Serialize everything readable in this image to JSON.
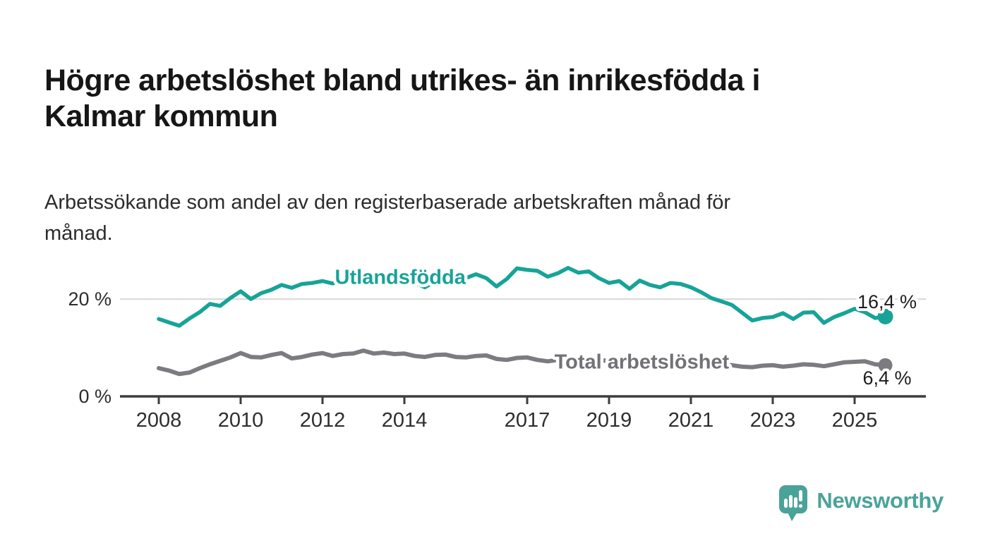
{
  "header": {
    "title_lines": [
      "Högre arbetslöshet bland utrikes- än inrikesfödda i",
      "Kalmar kommun"
    ],
    "subtitle_lines": [
      "Arbetssökande som andel av den registerbaserade arbetskraften månad för",
      "månad."
    ]
  },
  "footer": {
    "brand_name": "Newsworthy",
    "brand_color": "#4aa39a"
  },
  "colors": {
    "title": "#161616",
    "axis": "#3d3d3d",
    "gridline": "#d8d8d8",
    "tick_label": "#2e2e2e",
    "end_value_label": "#1d1d1d"
  },
  "chart_data": {
    "type": "line",
    "unit": "%",
    "grid": "single horizontal gridline at 20 %",
    "legend_position": "inline labels on lines",
    "x_axis": {
      "ticks": [
        2008,
        2010,
        2012,
        2014,
        2017,
        2019,
        2021,
        2023,
        2025
      ],
      "range": [
        2007,
        2026.8
      ]
    },
    "y_axis": {
      "ticks": [
        {
          "v": 20,
          "label": "20 %"
        },
        {
          "v": 0,
          "label": "0 %"
        }
      ],
      "range": [
        0,
        30
      ]
    },
    "x": [
      2008,
      2008.25,
      2008.5,
      2008.75,
      2009,
      2009.25,
      2009.5,
      2009.75,
      2010,
      2010.25,
      2010.5,
      2010.75,
      2011,
      2011.25,
      2011.5,
      2011.75,
      2012,
      2012.25,
      2012.5,
      2012.75,
      2013,
      2013.25,
      2013.5,
      2013.75,
      2014,
      2014.25,
      2014.5,
      2014.75,
      2015,
      2015.25,
      2015.5,
      2015.75,
      2016,
      2016.25,
      2016.5,
      2016.75,
      2017,
      2017.25,
      2017.5,
      2017.75,
      2018,
      2018.25,
      2018.5,
      2018.75,
      2019,
      2019.25,
      2019.5,
      2019.75,
      2020,
      2020.25,
      2020.5,
      2020.75,
      2021,
      2021.25,
      2021.5,
      2021.75,
      2022,
      2022.25,
      2022.5,
      2022.75,
      2023,
      2023.25,
      2023.5,
      2023.75,
      2024,
      2024.25,
      2024.5,
      2024.75,
      2025,
      2025.25,
      2025.5,
      2025.75
    ],
    "series": [
      {
        "id": "utlandsfodda",
        "name": "Utlandsfödda",
        "color": "#17a398",
        "label_color": "#17a398",
        "label_pos": {
          "x": 2013.9,
          "y": 24.6
        },
        "end_label": "16,4 %",
        "end_value": 16.4,
        "values": [
          15.9,
          15.2,
          14.5,
          16.0,
          17.3,
          19.0,
          18.6,
          20.2,
          21.6,
          20.0,
          21.2,
          21.9,
          22.9,
          22.3,
          23.1,
          23.3,
          23.7,
          23.2,
          23.9,
          23.6,
          24.1,
          23.7,
          24.2,
          23.9,
          24.1,
          23.4,
          22.4,
          23.6,
          23.9,
          23.6,
          24.3,
          25.1,
          24.3,
          22.6,
          24.1,
          26.3,
          26.0,
          25.8,
          24.6,
          25.3,
          26.4,
          25.4,
          25.7,
          24.3,
          23.3,
          23.7,
          22.1,
          23.8,
          22.9,
          22.4,
          23.3,
          23.1,
          22.4,
          21.4,
          20.2,
          19.5,
          18.8,
          17.2,
          15.6,
          16.1,
          16.3,
          17.1,
          15.9,
          17.2,
          17.3,
          15.1,
          16.3,
          17.1,
          18.0,
          17.3,
          16.1,
          16.4
        ]
      },
      {
        "id": "total-arbetsloshet",
        "name": "Total arbetslöshet",
        "color": "#7b7b80",
        "label_color": "#717176",
        "label_pos": {
          "x": 2019.8,
          "y": 7.2
        },
        "end_label": "6,4 %",
        "end_value": 6.4,
        "values": [
          5.8,
          5.3,
          4.6,
          4.9,
          5.8,
          6.6,
          7.3,
          8.0,
          8.9,
          8.1,
          8.0,
          8.5,
          8.9,
          7.8,
          8.1,
          8.6,
          8.9,
          8.3,
          8.7,
          8.8,
          9.4,
          8.8,
          9.0,
          8.7,
          8.8,
          8.3,
          8.1,
          8.5,
          8.6,
          8.1,
          8.0,
          8.3,
          8.4,
          7.7,
          7.5,
          7.9,
          8.0,
          7.5,
          7.2,
          7.5,
          7.7,
          7.2,
          7.0,
          7.3,
          7.4,
          7.0,
          6.8,
          7.0,
          7.2,
          7.8,
          8.0,
          7.8,
          7.6,
          7.2,
          6.9,
          6.6,
          6.4,
          6.1,
          6.0,
          6.3,
          6.4,
          6.1,
          6.3,
          6.6,
          6.5,
          6.2,
          6.6,
          7.0,
          7.1,
          7.2,
          6.6,
          6.4
        ]
      }
    ]
  }
}
